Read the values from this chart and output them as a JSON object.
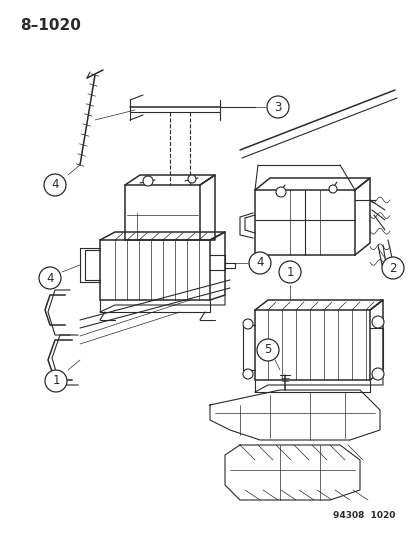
{
  "title": "8–1020",
  "footer": "94308  1020",
  "bg_color": "#f5f5f0",
  "line_color": "#2a2a2a",
  "title_fontsize": 11,
  "footer_fontsize": 7,
  "label_fontsize": 8.5,
  "fig_width": 4.14,
  "fig_height": 5.33,
  "dpi": 100
}
